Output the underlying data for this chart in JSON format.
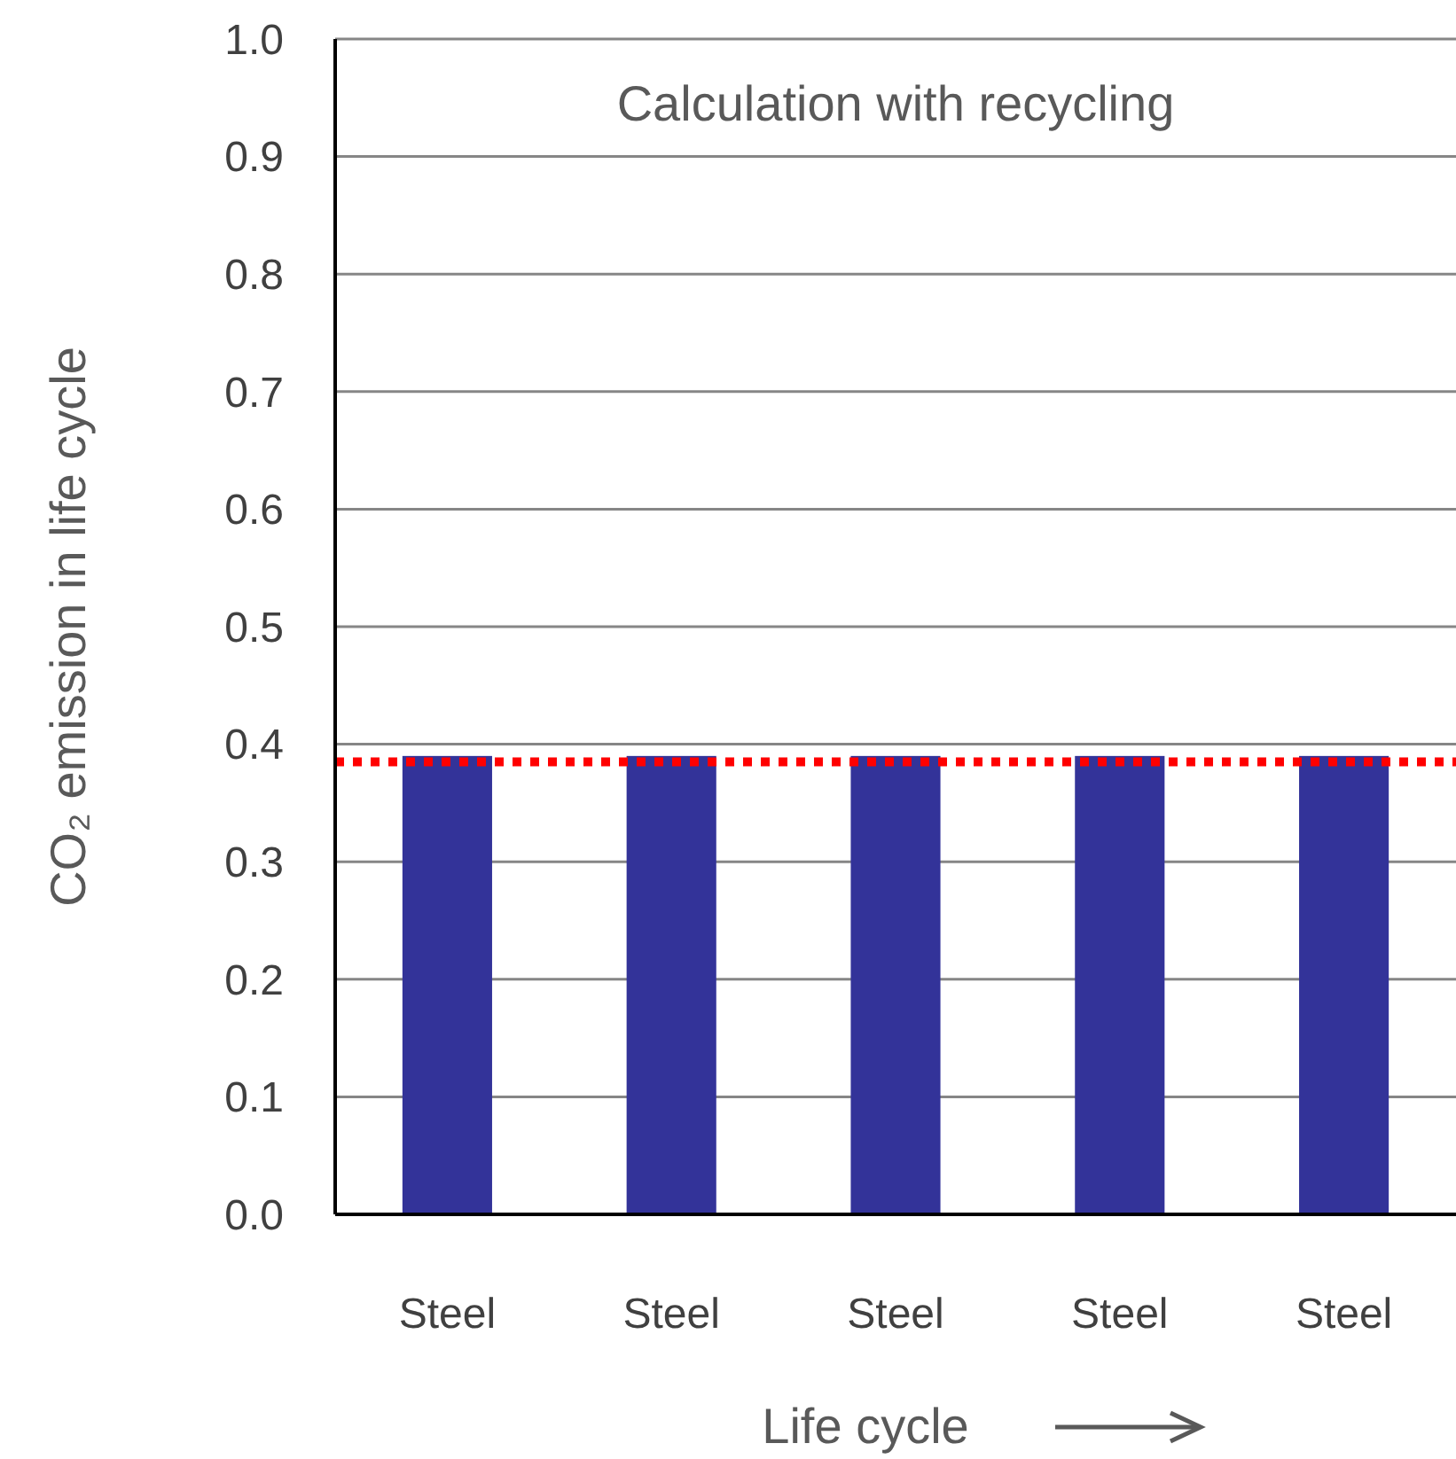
{
  "chart_data": {
    "type": "bar",
    "title": "Calculation with recycling",
    "categories": [
      "Steel",
      "Steel",
      "Steel",
      "Steel",
      "Steel"
    ],
    "values": [
      0.39,
      0.39,
      0.39,
      0.39,
      0.39
    ],
    "color": "#333399",
    "xlabel": "Life cycle",
    "ylabel": "CO₂ emission in life cycle",
    "ylim": [
      0,
      1.0
    ],
    "yticks": [
      {
        "value": 0,
        "label": "0.0"
      },
      0.1,
      0.2,
      0.3,
      0.4,
      0.5,
      0.6,
      0.7,
      0.8,
      0.9,
      {
        "value": 1,
        "label": "1.0"
      }
    ],
    "grid": "y",
    "ref_lines": [
      {
        "axis": "y",
        "value": 0.385,
        "color": "#ff0000",
        "line_style": "dotted"
      }
    ]
  }
}
